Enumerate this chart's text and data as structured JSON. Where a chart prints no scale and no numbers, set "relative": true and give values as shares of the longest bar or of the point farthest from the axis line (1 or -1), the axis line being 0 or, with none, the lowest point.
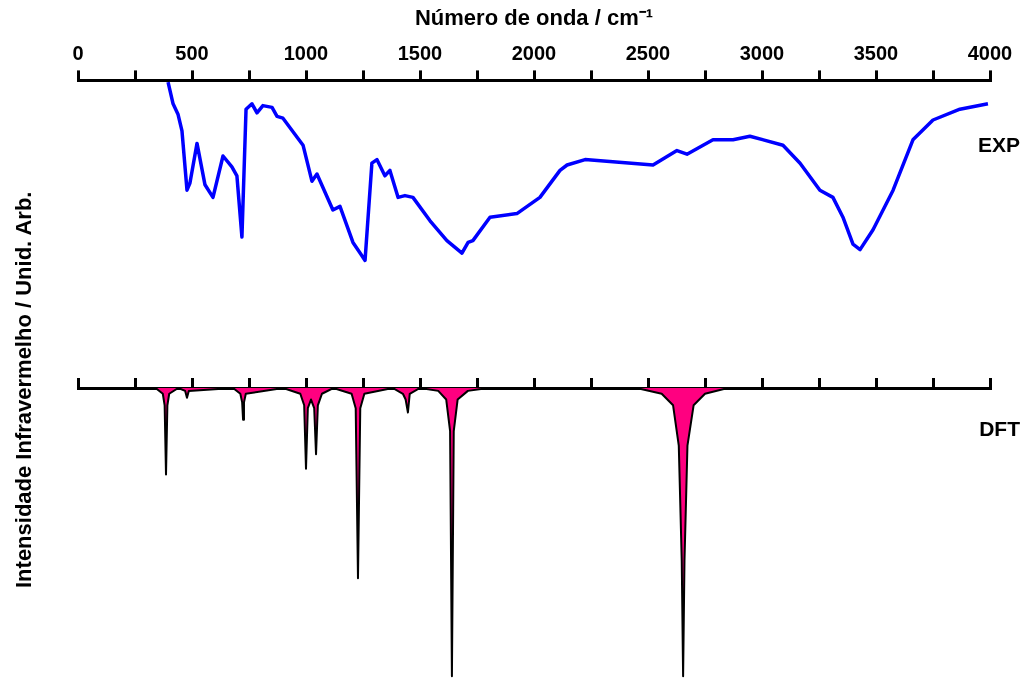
{
  "chart_data": [
    {
      "type": "line",
      "xlabel": "Número de onda / cm⁻¹",
      "ylabel": "Intensidade Infravermelho / Unid. Arb.",
      "relative": true,
      "xlim": [
        0,
        4000
      ],
      "xticks": [
        0,
        {
          "value": 250,
          "label": null
        },
        500,
        {
          "value": 750,
          "label": null
        },
        1000,
        {
          "value": 1250,
          "label": null
        },
        1500,
        {
          "value": 1750,
          "label": null
        },
        2000,
        {
          "value": 2250,
          "label": null
        },
        2500,
        {
          "value": 2750,
          "label": null
        },
        3000,
        {
          "value": 3250,
          "label": null
        },
        3500,
        {
          "value": 3750,
          "label": null
        },
        4000
      ],
      "series": [
        {
          "name": "EXP",
          "color": "#0000ff",
          "x": [
            395,
            417,
            439,
            456,
            478,
            491,
            522,
            557,
            592,
            636,
            675,
            697,
            719,
            737,
            763,
            785,
            811,
            851,
            873,
            899,
            987,
            1026,
            1048,
            1118,
            1149,
            1206,
            1259,
            1289,
            1311,
            1346,
            1368,
            1404,
            1434,
            1469,
            1544,
            1618,
            1684,
            1711,
            1732,
            1807,
            1925,
            2026,
            2114,
            2145,
            2224,
            2522,
            2627,
            2671,
            2785,
            2873,
            2947,
            3092,
            3167,
            3254,
            3311,
            3355,
            3399,
            3430,
            3487,
            3575,
            3662,
            3750,
            3868,
            3991
          ],
          "values": [
            -0.01,
            -0.13,
            -0.19,
            -0.28,
            -0.61,
            -0.57,
            -0.35,
            -0.58,
            -0.65,
            -0.42,
            -0.48,
            -0.53,
            -0.87,
            -0.16,
            -0.13,
            -0.18,
            -0.14,
            -0.15,
            -0.2,
            -0.21,
            -0.36,
            -0.56,
            -0.52,
            -0.72,
            -0.7,
            -0.9,
            -1,
            -0.46,
            -0.44,
            -0.53,
            -0.5,
            -0.65,
            -0.64,
            -0.65,
            -0.78,
            -0.89,
            -0.96,
            -0.9,
            -0.89,
            -0.76,
            -0.74,
            -0.65,
            -0.5,
            -0.47,
            -0.44,
            -0.47,
            -0.39,
            -0.41,
            -0.33,
            -0.33,
            -0.31,
            -0.36,
            -0.46,
            -0.61,
            -0.65,
            -0.76,
            -0.91,
            -0.94,
            -0.83,
            -0.61,
            -0.33,
            -0.22,
            -0.16,
            -0.13
          ]
        }
      ]
    },
    {
      "type": "area",
      "relative": true,
      "tick_labels": false,
      "xlim": [
        0,
        4000
      ],
      "xticks": [
        0,
        {
          "value": 250,
          "label": null
        },
        500,
        {
          "value": 750,
          "label": null
        },
        1000,
        {
          "value": 1250,
          "label": null
        },
        1500,
        {
          "value": 1750,
          "label": null
        },
        2000,
        {
          "value": 2250,
          "label": null
        },
        2500,
        {
          "value": 2750,
          "label": null
        },
        3000,
        {
          "value": 3250,
          "label": null
        },
        3500,
        {
          "value": 3750,
          "label": null
        },
        4000
      ],
      "series": [
        {
          "name": "DFT",
          "color": "#ff0080",
          "x": [
            0,
            340,
            372,
            380,
            386,
            392,
            400,
            440,
            470,
            478,
            486,
            680,
            712,
            720,
            724,
            728,
            736,
            900,
            975,
            992,
            1000,
            1008,
            1022,
            1036,
            1044,
            1052,
            1070,
            1120,
            1200,
            1218,
            1228,
            1238,
            1256,
            1380,
            1425,
            1437,
            1447,
            1455,
            1500,
            1580,
            1615,
            1632,
            1640,
            1648,
            1665,
            1710,
            1800,
            2450,
            2560,
            2610,
            2635,
            2648,
            2654,
            2660,
            2673,
            2700,
            2750,
            2850,
            4000
          ],
          "values": [
            0,
            0,
            -0.02,
            -0.06,
            -0.3,
            -0.06,
            -0.02,
            0,
            -0.01,
            -0.034,
            -0.01,
            0,
            -0.02,
            -0.05,
            -0.11,
            -0.05,
            -0.02,
            0,
            -0.02,
            -0.06,
            -0.28,
            -0.07,
            -0.04,
            -0.07,
            -0.23,
            -0.06,
            -0.02,
            0,
            -0.02,
            -0.07,
            -0.66,
            -0.07,
            -0.02,
            0,
            -0.02,
            -0.04,
            -0.085,
            -0.02,
            0,
            -0.01,
            -0.04,
            -0.15,
            -1,
            -0.15,
            -0.04,
            -0.01,
            0,
            0,
            -0.02,
            -0.06,
            -0.2,
            -0.6,
            -1,
            -0.6,
            -0.2,
            -0.06,
            -0.02,
            0,
            0
          ]
        }
      ]
    }
  ]
}
